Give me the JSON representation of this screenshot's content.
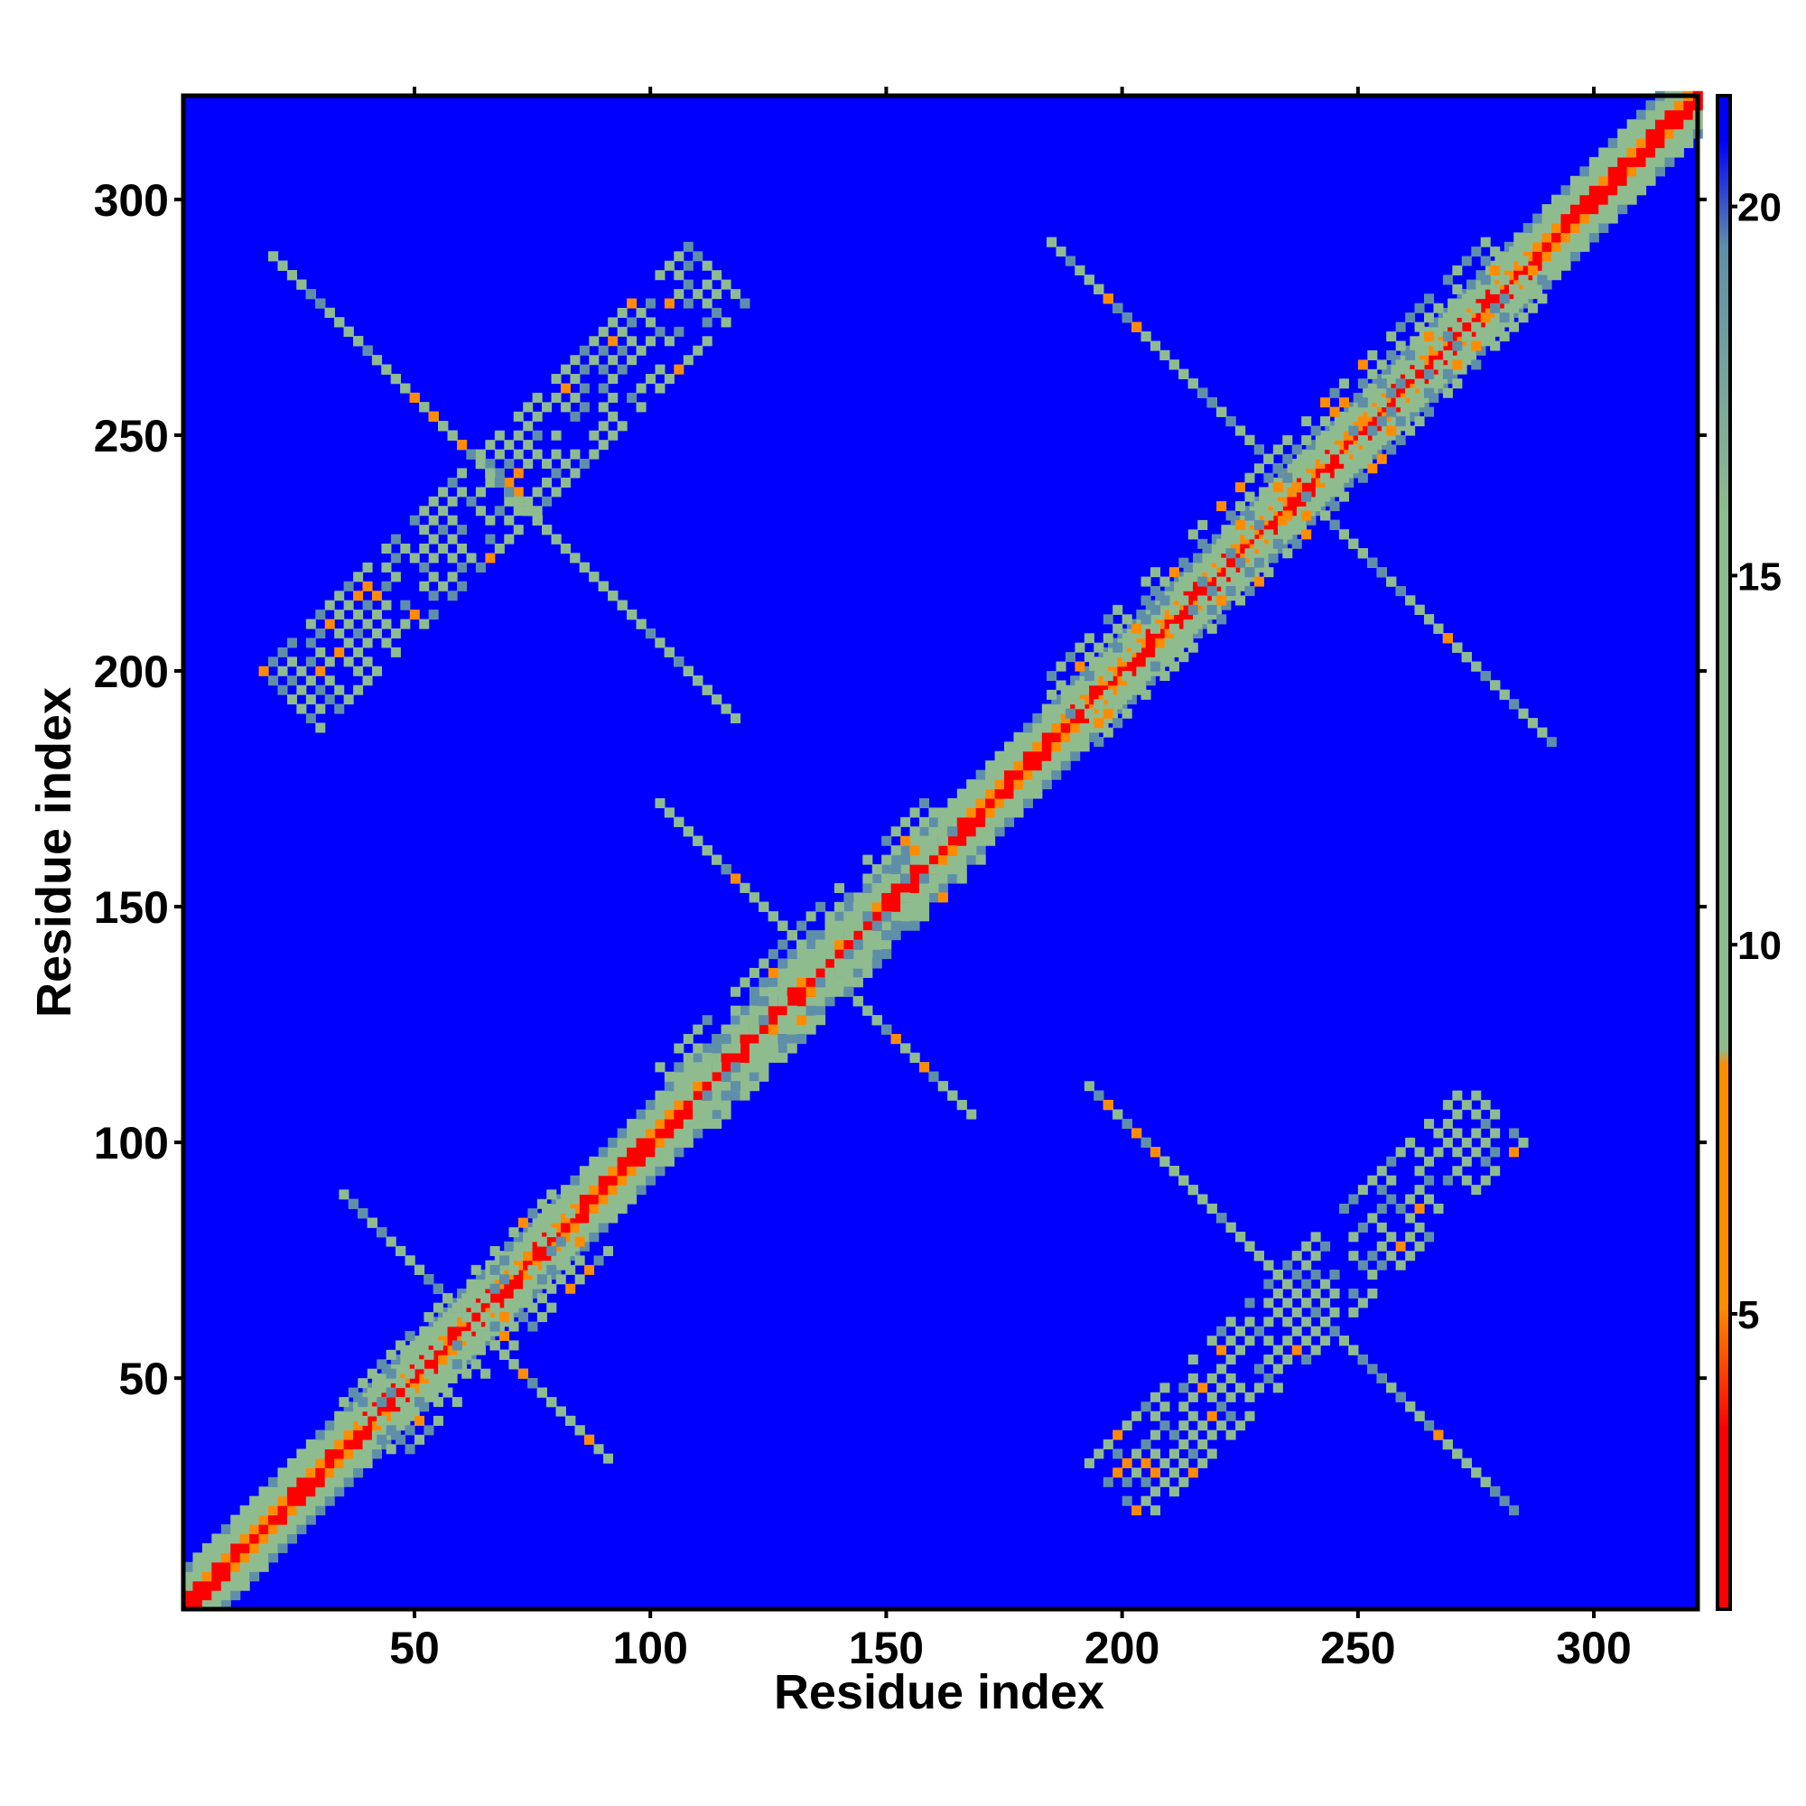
{
  "chart_data": {
    "type": "heatmap",
    "title": "",
    "xlabel": "Residue index",
    "ylabel": "Residue index",
    "xlim": [
      1,
      322
    ],
    "ylim": [
      1,
      322
    ],
    "x_ticks": [
      50,
      100,
      150,
      200,
      250,
      300
    ],
    "y_ticks": [
      50,
      100,
      150,
      200,
      250,
      300
    ],
    "colorbar": {
      "range": [
        1,
        21.5
      ],
      "ticks": [
        5,
        10,
        15,
        20
      ],
      "colors": {
        "low": "#ff0000",
        "mid_low": "#ff8c00",
        "mid": "#8fbc8f",
        "high": "#5f8fa8",
        "max": "#0000ff"
      }
    },
    "background_color": "#0000ff",
    "features": [
      {
        "kind": "diagonal_band",
        "from": 1,
        "to": 322,
        "core_value": 2,
        "half_width": 8
      },
      {
        "kind": "cross_block",
        "center_x": 62,
        "center_y": 60,
        "extent": 22
      },
      {
        "kind": "cross_block",
        "center_x": 135,
        "center_y": 137,
        "extent": 28
      },
      {
        "kind": "cross_block",
        "center_x": 68,
        "center_y": 238,
        "extent": 45
      },
      {
        "kind": "cross_block",
        "center_x": 236,
        "center_y": 238,
        "extent": 48
      },
      {
        "kind": "cross_block",
        "center_x": 238,
        "center_y": 65,
        "extent": 40
      }
    ],
    "grid": false,
    "legend": "colorbar-right"
  }
}
